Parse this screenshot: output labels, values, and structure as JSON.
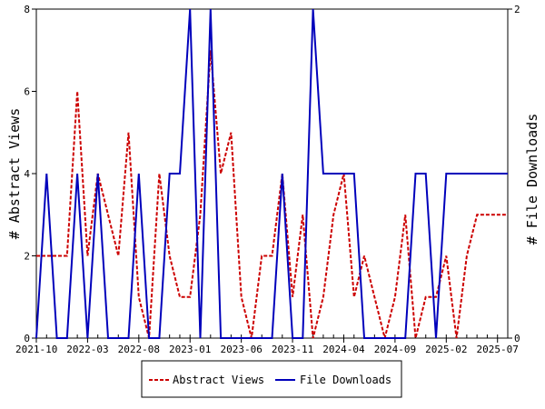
{
  "chart_data": {
    "type": "line",
    "y_left_label": "# Abstract Views",
    "y_right_label": "# File Downloads",
    "y_left_lim": [
      0,
      8
    ],
    "y_left_ticks": [
      "0",
      "2",
      "4",
      "6",
      "8"
    ],
    "y_right_lim": [
      0,
      2
    ],
    "y_right_ticks": [
      "0",
      "2"
    ],
    "x_tick_labels": [
      "2021-10",
      "2022-03",
      "2022-08",
      "2023-01",
      "2023-06",
      "2023-11",
      "2024-04",
      "2024-09",
      "2025-02",
      "2025-07"
    ],
    "x_months": [
      "2021-10",
      "2021-11",
      "2021-12",
      "2022-01",
      "2022-02",
      "2022-03",
      "2022-04",
      "2022-05",
      "2022-06",
      "2022-07",
      "2022-08",
      "2022-09",
      "2022-10",
      "2022-11",
      "2022-12",
      "2023-01",
      "2023-02",
      "2023-03",
      "2023-04",
      "2023-05",
      "2023-06",
      "2023-07",
      "2023-08",
      "2023-09",
      "2023-10",
      "2023-11",
      "2023-12",
      "2024-01",
      "2024-02",
      "2024-03",
      "2024-04",
      "2024-05",
      "2024-06",
      "2024-07",
      "2024-08",
      "2024-09",
      "2024-10",
      "2024-11",
      "2024-12",
      "2025-01",
      "2025-02",
      "2025-03",
      "2025-04",
      "2025-05",
      "2025-06",
      "2025-07",
      "2025-08"
    ],
    "grid": false,
    "legend_position": "bottom-center",
    "series": [
      {
        "name": "Abstract Views",
        "axis": "left",
        "color": "#cc0000",
        "dash": "dashed",
        "values": [
          2,
          2,
          2,
          2,
          6,
          2,
          4,
          3,
          2,
          5,
          1,
          0,
          4,
          2,
          1,
          1,
          3,
          7,
          4,
          5,
          1,
          0,
          2,
          2,
          4,
          1,
          3,
          0,
          1,
          3,
          4,
          1,
          2,
          1,
          0,
          1,
          3,
          0,
          1,
          1,
          2,
          0,
          2,
          3,
          3,
          3,
          3
        ]
      },
      {
        "name": "File Downloads",
        "axis": "right",
        "color": "#0000bb",
        "dash": "solid",
        "values": [
          0,
          1,
          0,
          0,
          1,
          0,
          1,
          0,
          0,
          0,
          1,
          0,
          0,
          1,
          1,
          2,
          0,
          2,
          0,
          0,
          0,
          0,
          0,
          0,
          1,
          0,
          0,
          2,
          1,
          1,
          1,
          1,
          0,
          0,
          0,
          0,
          0,
          1,
          1,
          0,
          1,
          1,
          1,
          1,
          1,
          1,
          1
        ]
      }
    ]
  }
}
